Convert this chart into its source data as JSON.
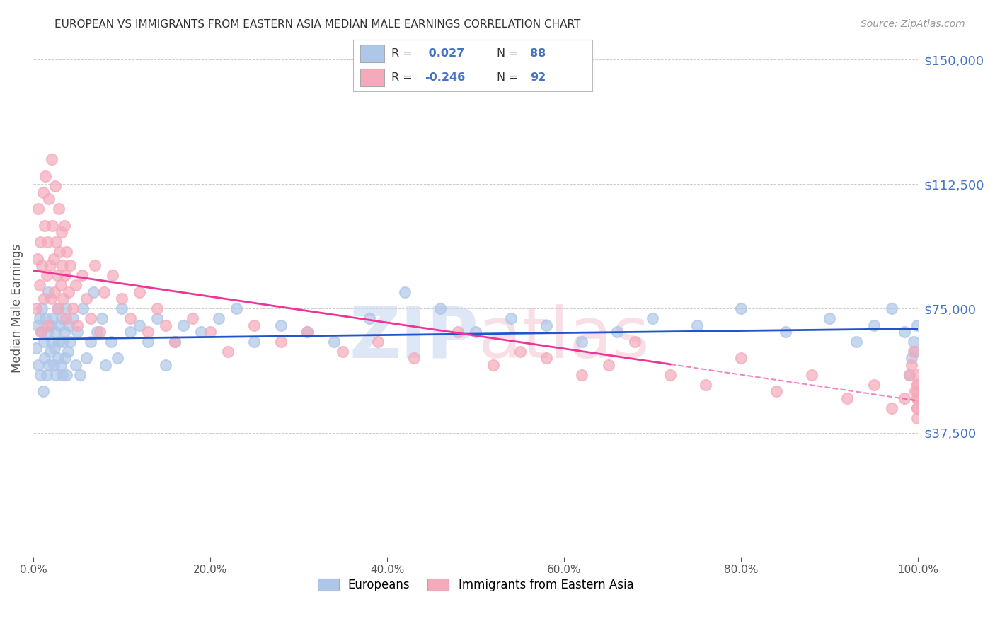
{
  "title": "EUROPEAN VS IMMIGRANTS FROM EASTERN ASIA MEDIAN MALE EARNINGS CORRELATION CHART",
  "source": "Source: ZipAtlas.com",
  "ylabel": "Median Male Earnings",
  "yticks": [
    0,
    37500,
    75000,
    112500,
    150000
  ],
  "ytick_labels": [
    "",
    "$37,500",
    "$75,000",
    "$112,500",
    "$150,000"
  ],
  "xmin": 0.0,
  "xmax": 1.0,
  "ymin": 0,
  "ymax": 150000,
  "blue_R": 0.027,
  "blue_N": 88,
  "pink_R": -0.246,
  "pink_N": 92,
  "blue_color": "#AEC6E8",
  "pink_color": "#F4AABB",
  "blue_line_color": "#2255CC",
  "pink_line_color": "#EE3399",
  "legend_label_blue": "Europeans",
  "legend_label_pink": "Immigrants from Eastern Asia",
  "background_color": "#FFFFFF",
  "grid_color": "#CCCCCC",
  "title_color": "#333333",
  "tick_label_color": "#4472C4",
  "blue_scatter_x": [
    0.003,
    0.005,
    0.006,
    0.007,
    0.008,
    0.009,
    0.01,
    0.011,
    0.012,
    0.013,
    0.014,
    0.015,
    0.016,
    0.017,
    0.018,
    0.019,
    0.02,
    0.021,
    0.022,
    0.023,
    0.024,
    0.025,
    0.026,
    0.027,
    0.028,
    0.029,
    0.03,
    0.031,
    0.032,
    0.033,
    0.034,
    0.035,
    0.036,
    0.037,
    0.038,
    0.039,
    0.04,
    0.042,
    0.045,
    0.048,
    0.05,
    0.053,
    0.056,
    0.06,
    0.065,
    0.068,
    0.072,
    0.078,
    0.082,
    0.088,
    0.095,
    0.1,
    0.11,
    0.12,
    0.13,
    0.14,
    0.15,
    0.16,
    0.17,
    0.19,
    0.21,
    0.23,
    0.25,
    0.28,
    0.31,
    0.34,
    0.38,
    0.42,
    0.46,
    0.5,
    0.54,
    0.58,
    0.62,
    0.66,
    0.7,
    0.75,
    0.8,
    0.85,
    0.9,
    0.93,
    0.95,
    0.97,
    0.985,
    0.99,
    0.993,
    0.995,
    0.997,
    0.999
  ],
  "blue_scatter_y": [
    63000,
    70000,
    58000,
    72000,
    55000,
    68000,
    75000,
    50000,
    65000,
    60000,
    72000,
    55000,
    68000,
    80000,
    58000,
    62000,
    70000,
    65000,
    72000,
    58000,
    63000,
    68000,
    55000,
    75000,
    60000,
    65000,
    70000,
    58000,
    72000,
    55000,
    65000,
    68000,
    60000,
    75000,
    55000,
    62000,
    70000,
    65000,
    72000,
    58000,
    68000,
    55000,
    75000,
    60000,
    65000,
    80000,
    68000,
    72000,
    58000,
    65000,
    60000,
    75000,
    68000,
    70000,
    65000,
    72000,
    58000,
    65000,
    70000,
    68000,
    72000,
    75000,
    65000,
    70000,
    68000,
    65000,
    72000,
    80000,
    75000,
    68000,
    72000,
    70000,
    65000,
    68000,
    72000,
    70000,
    75000,
    68000,
    72000,
    65000,
    70000,
    75000,
    68000,
    55000,
    60000,
    65000,
    62000,
    70000
  ],
  "pink_scatter_x": [
    0.003,
    0.005,
    0.006,
    0.007,
    0.008,
    0.009,
    0.01,
    0.011,
    0.012,
    0.013,
    0.014,
    0.015,
    0.016,
    0.017,
    0.018,
    0.019,
    0.02,
    0.021,
    0.022,
    0.023,
    0.024,
    0.025,
    0.026,
    0.027,
    0.028,
    0.029,
    0.03,
    0.031,
    0.032,
    0.033,
    0.034,
    0.035,
    0.036,
    0.037,
    0.038,
    0.04,
    0.042,
    0.045,
    0.048,
    0.05,
    0.055,
    0.06,
    0.065,
    0.07,
    0.075,
    0.08,
    0.09,
    0.1,
    0.11,
    0.12,
    0.13,
    0.14,
    0.15,
    0.16,
    0.18,
    0.2,
    0.22,
    0.25,
    0.28,
    0.31,
    0.35,
    0.39,
    0.43,
    0.48,
    0.52,
    0.55,
    0.58,
    0.62,
    0.65,
    0.68,
    0.72,
    0.76,
    0.8,
    0.84,
    0.88,
    0.92,
    0.95,
    0.97,
    0.985,
    0.99,
    0.993,
    0.995,
    0.997,
    0.999,
    0.999,
    0.999,
    0.999,
    0.999,
    0.999,
    0.999,
    0.999,
    0.999
  ],
  "pink_scatter_y": [
    75000,
    90000,
    105000,
    82000,
    95000,
    68000,
    88000,
    110000,
    78000,
    100000,
    115000,
    85000,
    95000,
    70000,
    108000,
    88000,
    78000,
    120000,
    100000,
    90000,
    80000,
    112000,
    95000,
    85000,
    75000,
    105000,
    92000,
    82000,
    98000,
    88000,
    78000,
    100000,
    85000,
    72000,
    92000,
    80000,
    88000,
    75000,
    82000,
    70000,
    85000,
    78000,
    72000,
    88000,
    68000,
    80000,
    85000,
    78000,
    72000,
    80000,
    68000,
    75000,
    70000,
    65000,
    72000,
    68000,
    62000,
    70000,
    65000,
    68000,
    62000,
    65000,
    60000,
    68000,
    58000,
    62000,
    60000,
    55000,
    58000,
    65000,
    55000,
    52000,
    60000,
    50000,
    55000,
    48000,
    52000,
    45000,
    48000,
    55000,
    58000,
    62000,
    50000,
    42000,
    52000,
    48000,
    45000,
    50000,
    55000,
    48000,
    52000,
    45000
  ],
  "blue_trend_x0": 0.0,
  "blue_trend_x1": 1.0,
  "blue_trend_y0": 65000,
  "blue_trend_y1": 70000,
  "pink_trend_x0": 0.0,
  "pink_trend_x1": 0.72,
  "pink_trend_x1_dash": 1.0,
  "pink_trend_y0": 88000,
  "pink_trend_y1": 50000,
  "pink_trend_y1_dash": 38000
}
